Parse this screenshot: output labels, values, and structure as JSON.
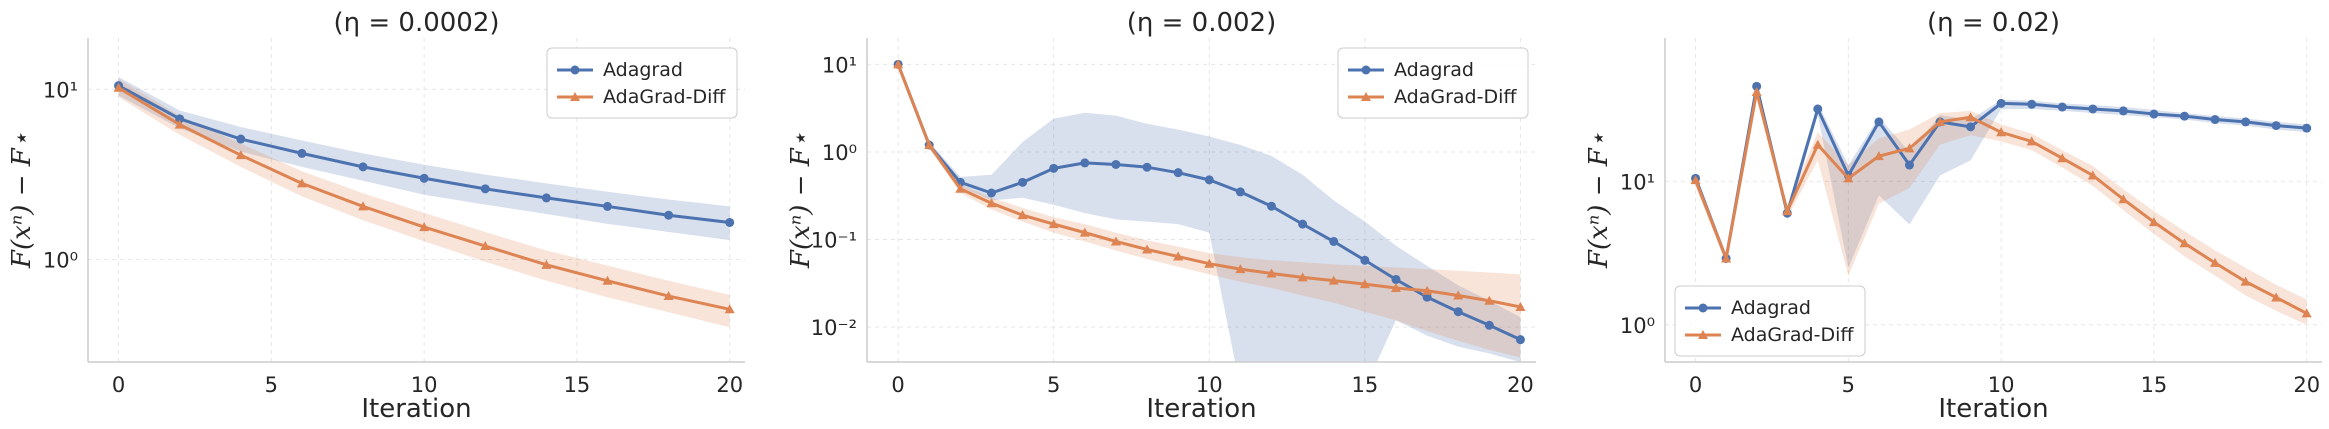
{
  "colors": {
    "adagrad": "#4c72b0",
    "adagrad_diff": "#dd8452"
  },
  "chart_data": [
    {
      "type": "line",
      "title": "(η = 0.0002)",
      "xlabel": "Iteration",
      "ylabel": "F(xⁿ) − F⋆",
      "yscale": "log",
      "xlim": [
        -1,
        20.5
      ],
      "ylim": [
        0.25,
        20
      ],
      "xticks": [
        0,
        5,
        10,
        15,
        20
      ],
      "xtick_labels": [
        "0",
        "5",
        "10",
        "15",
        "20"
      ],
      "yticks": [
        1,
        10
      ],
      "ytick_labels": [
        "10⁰",
        "10¹"
      ],
      "grid": true,
      "legend": {
        "position": "top-right",
        "labels": [
          "Adagrad",
          "AdaGrad-Diff"
        ]
      },
      "series": [
        {
          "name": "Adagrad",
          "marker": "circle",
          "x": [
            0,
            2,
            4,
            6,
            8,
            10,
            12,
            14,
            16,
            18,
            20
          ],
          "y": [
            10.5,
            6.7,
            5.1,
            4.2,
            3.5,
            3.0,
            2.6,
            2.3,
            2.05,
            1.82,
            1.65
          ],
          "lower": [
            9.2,
            5.9,
            4.3,
            3.5,
            2.9,
            2.4,
            2.1,
            1.85,
            1.62,
            1.45,
            1.3
          ],
          "upper": [
            11.8,
            7.5,
            6.0,
            5.0,
            4.2,
            3.6,
            3.15,
            2.8,
            2.5,
            2.25,
            2.05
          ]
        },
        {
          "name": "AdaGrad-Diff",
          "marker": "triangle",
          "x": [
            0,
            2,
            4,
            6,
            8,
            10,
            12,
            14,
            16,
            18,
            20
          ],
          "y": [
            10.2,
            6.2,
            4.1,
            2.8,
            2.05,
            1.55,
            1.2,
            0.93,
            0.75,
            0.61,
            0.51
          ],
          "lower": [
            9.0,
            5.4,
            3.5,
            2.35,
            1.7,
            1.28,
            0.97,
            0.75,
            0.6,
            0.49,
            0.4
          ],
          "upper": [
            11.5,
            7.0,
            4.8,
            3.3,
            2.45,
            1.88,
            1.45,
            1.13,
            0.92,
            0.75,
            0.62
          ]
        }
      ]
    },
    {
      "type": "line",
      "title": "(η = 0.002)",
      "xlabel": "Iteration",
      "ylabel": "F(xⁿ) − F⋆",
      "yscale": "log",
      "xlim": [
        -1,
        20.5
      ],
      "ylim": [
        0.004,
        20
      ],
      "xticks": [
        0,
        5,
        10,
        15,
        20
      ],
      "xtick_labels": [
        "0",
        "5",
        "10",
        "15",
        "20"
      ],
      "yticks": [
        0.01,
        0.1,
        1,
        10
      ],
      "ytick_labels": [
        "10⁻²",
        "10⁻¹",
        "10⁰",
        "10¹"
      ],
      "grid": true,
      "legend": {
        "position": "top-right",
        "labels": [
          "Adagrad",
          "AdaGrad-Diff"
        ]
      },
      "series": [
        {
          "name": "Adagrad",
          "marker": "circle",
          "x": [
            0,
            1,
            2,
            3,
            4,
            5,
            6,
            7,
            8,
            9,
            10,
            11,
            12,
            13,
            14,
            15,
            16,
            17,
            18,
            19,
            20
          ],
          "y": [
            10,
            1.2,
            0.45,
            0.34,
            0.45,
            0.65,
            0.75,
            0.72,
            0.67,
            0.58,
            0.48,
            0.35,
            0.24,
            0.15,
            0.095,
            0.058,
            0.035,
            0.022,
            0.015,
            0.0105,
            0.0072
          ],
          "lower": [
            9.0,
            1.1,
            0.4,
            0.28,
            0.3,
            0.25,
            0.2,
            0.17,
            0.16,
            0.15,
            0.12,
            0.001,
            0.001,
            0.001,
            0.001,
            0.001,
            0.012,
            0.008,
            0.006,
            0.005,
            0.004
          ],
          "upper": [
            11,
            1.3,
            0.52,
            0.55,
            1.3,
            2.4,
            2.8,
            2.6,
            2.1,
            1.8,
            1.5,
            1.2,
            0.9,
            0.55,
            0.28,
            0.16,
            0.085,
            0.05,
            0.03,
            0.02,
            0.013
          ]
        },
        {
          "name": "AdaGrad-Diff",
          "marker": "triangle",
          "x": [
            0,
            1,
            2,
            3,
            4,
            5,
            6,
            7,
            8,
            9,
            10,
            11,
            12,
            13,
            14,
            15,
            16,
            17,
            18,
            19,
            20
          ],
          "y": [
            10,
            1.2,
            0.38,
            0.26,
            0.19,
            0.15,
            0.12,
            0.095,
            0.077,
            0.064,
            0.053,
            0.046,
            0.041,
            0.037,
            0.034,
            0.031,
            0.028,
            0.026,
            0.023,
            0.02,
            0.017
          ],
          "lower": [
            9.0,
            1.1,
            0.34,
            0.22,
            0.16,
            0.12,
            0.095,
            0.075,
            0.06,
            0.049,
            0.04,
            0.033,
            0.028,
            0.023,
            0.019,
            0.015,
            0.012,
            0.009,
            0.007,
            0.0055,
            0.0045
          ],
          "upper": [
            11,
            1.3,
            0.43,
            0.3,
            0.23,
            0.18,
            0.15,
            0.12,
            0.098,
            0.083,
            0.07,
            0.063,
            0.058,
            0.055,
            0.052,
            0.05,
            0.048,
            0.046,
            0.044,
            0.042,
            0.04
          ]
        }
      ]
    },
    {
      "type": "line",
      "title": "(η = 0.02)",
      "xlabel": "Iteration",
      "ylabel": "F(xⁿ) − F⋆",
      "yscale": "log",
      "xlim": [
        -1,
        20.5
      ],
      "ylim": [
        0.55,
        100
      ],
      "xticks": [
        0,
        5,
        10,
        15,
        20
      ],
      "xtick_labels": [
        "0",
        "5",
        "10",
        "15",
        "20"
      ],
      "yticks": [
        1,
        10
      ],
      "ytick_labels": [
        "10⁰",
        "10¹"
      ],
      "grid": true,
      "legend": {
        "position": "lower-left",
        "labels": [
          "Adagrad",
          "AdaGrad-Diff"
        ]
      },
      "series": [
        {
          "name": "Adagrad",
          "marker": "circle",
          "x": [
            0,
            1,
            2,
            3,
            4,
            5,
            6,
            7,
            8,
            9,
            10,
            11,
            12,
            13,
            14,
            15,
            16,
            17,
            18,
            19,
            20
          ],
          "y": [
            10.5,
            2.9,
            46,
            6,
            32,
            11,
            26,
            13,
            26,
            24,
            35,
            34.5,
            33,
            32,
            31,
            29.5,
            28.5,
            27,
            26,
            24.5,
            23.5
          ],
          "lower": [
            9.5,
            2.7,
            43,
            5.4,
            29,
            2.5,
            8,
            5,
            11,
            14,
            32,
            32,
            31,
            30,
            29,
            28,
            27,
            25.5,
            24.5,
            23,
            22
          ],
          "upper": [
            11.5,
            3.1,
            49,
            6.6,
            35,
            13,
            28,
            16,
            29,
            27,
            37,
            36.5,
            35,
            34,
            33,
            31.5,
            30,
            28.5,
            27.5,
            26,
            25
          ]
        },
        {
          "name": "AdaGrad-Diff",
          "marker": "triangle",
          "x": [
            0,
            1,
            2,
            3,
            4,
            5,
            6,
            7,
            8,
            9,
            10,
            11,
            12,
            13,
            14,
            15,
            16,
            17,
            18,
            19,
            20
          ],
          "y": [
            10.2,
            2.9,
            42,
            6.2,
            18,
            10.5,
            15,
            17,
            26,
            28,
            22,
            19,
            14.5,
            11,
            7.5,
            5.2,
            3.7,
            2.7,
            2.0,
            1.55,
            1.2
          ],
          "lower": [
            9.2,
            2.7,
            39,
            5.6,
            14,
            2.2,
            7,
            9,
            18,
            21,
            19,
            16.5,
            12.5,
            9.3,
            6.3,
            4.3,
            3.0,
            2.2,
            1.6,
            1.25,
            1.0
          ],
          "upper": [
            11.2,
            3.1,
            45,
            6.8,
            22,
            13,
            20,
            23,
            30,
            31,
            25,
            21.5,
            16.5,
            12.8,
            8.8,
            6.2,
            4.5,
            3.3,
            2.5,
            1.9,
            1.5
          ]
        }
      ]
    }
  ]
}
